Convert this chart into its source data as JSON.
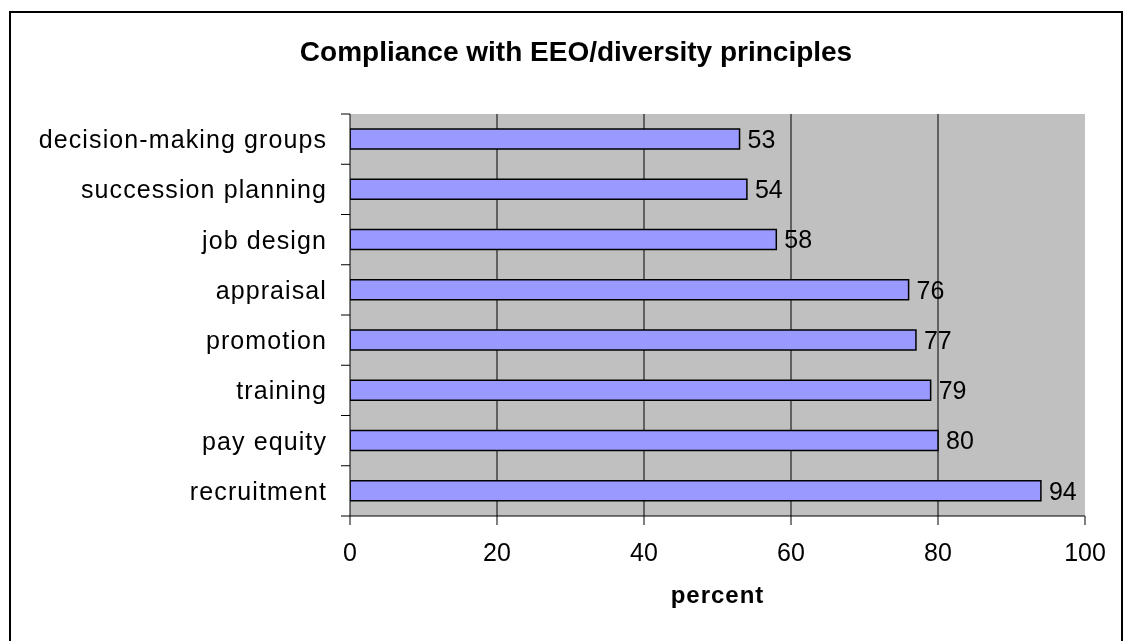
{
  "chart_data": {
    "type": "bar",
    "orientation": "horizontal",
    "title": "Compliance with EEO/diversity principles",
    "xlabel": "percent",
    "categories": [
      "decision-making groups",
      "succession planning",
      "job design",
      "appraisal",
      "promotion",
      "training",
      "pay equity",
      "recruitment"
    ],
    "values": [
      53,
      54,
      58,
      76,
      77,
      79,
      80,
      94
    ],
    "color": "#9999ff",
    "xlim": [
      0,
      100
    ],
    "xticks": [
      0,
      20,
      40,
      60,
      80,
      100
    ],
    "grid": "x",
    "data_labels": true
  }
}
